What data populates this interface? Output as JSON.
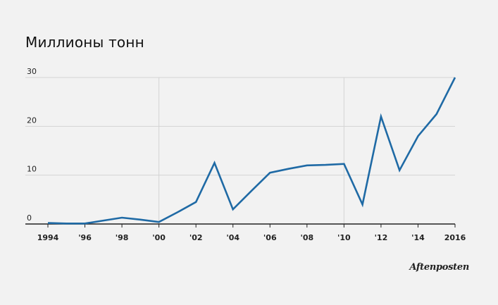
{
  "chart_data": {
    "type": "line",
    "title": "Миллионы тонн",
    "xlabel": "",
    "ylabel": "",
    "x": [
      1994,
      1995,
      1996,
      1997,
      1998,
      1999,
      2000,
      2001,
      2002,
      2003,
      2004,
      2005,
      2006,
      2007,
      2008,
      2009,
      2010,
      2011,
      2012,
      2013,
      2014,
      2015,
      2016
    ],
    "series": [
      {
        "values": [
          0.2,
          0.1,
          0.1,
          0.7,
          1.3,
          0.9,
          0.4,
          2.4,
          4.5,
          12.5,
          3.0,
          6.8,
          10.5,
          11.3,
          12.0,
          12.1,
          12.3,
          4.0,
          22.0,
          11.0,
          18.0,
          22.5,
          30.0
        ],
        "color": "#1f6aa5"
      }
    ],
    "ylim": [
      0,
      30
    ],
    "xlim": [
      1994,
      2016
    ],
    "yticks": [
      0,
      10,
      20,
      30
    ],
    "ytick_labels": [
      "0",
      "10",
      "20",
      "30"
    ],
    "xticks": [
      1994,
      1996,
      1998,
      2000,
      2002,
      2004,
      2006,
      2008,
      2010,
      2012,
      2014,
      2016
    ],
    "xtick_labels": [
      "1994",
      "'96",
      "'98",
      "'00",
      "'02",
      "'04",
      "'06",
      "'08",
      "'10",
      "'12",
      "'14",
      "2016"
    ],
    "vertical_gridlines_at": [
      2000,
      2010
    ],
    "grid": true,
    "legend": "none"
  },
  "logo": {
    "text": "Aftenposten"
  }
}
